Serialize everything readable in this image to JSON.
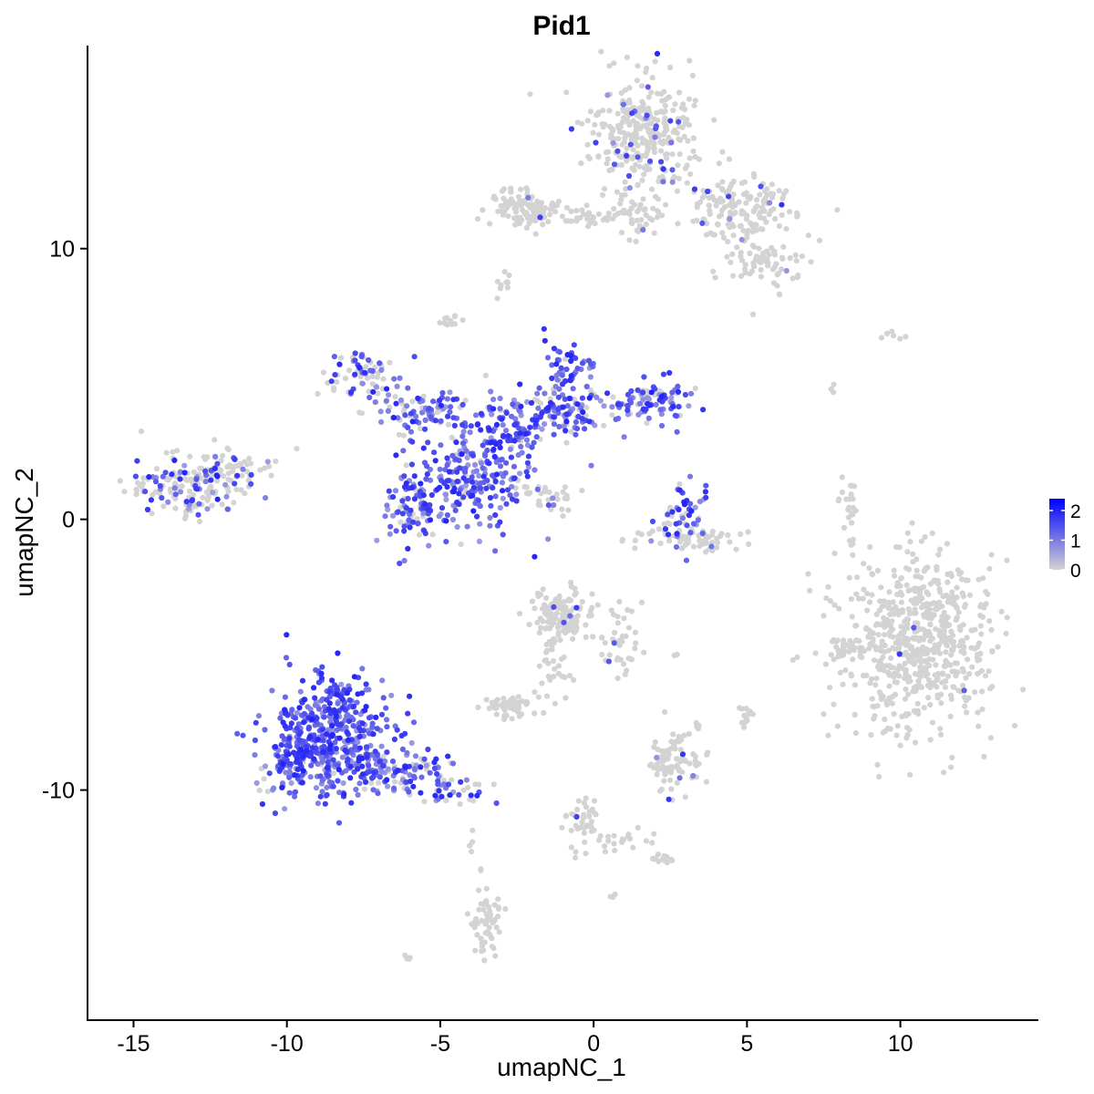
{
  "chart_data": {
    "type": "scatter",
    "title": "Pid1",
    "xlabel": "umapNC_1",
    "ylabel": "umapNC_2",
    "xlim": [
      -16.5,
      14.5
    ],
    "ylim": [
      -18.5,
      17.5
    ],
    "x_ticks": [
      -15,
      -10,
      -5,
      0,
      5,
      10
    ],
    "x_tick_labels": [
      "-15",
      "-10",
      "-5",
      "0",
      "5",
      "10"
    ],
    "y_ticks": [
      -10,
      0,
      10
    ],
    "y_tick_labels": [
      "-10",
      "0",
      "10"
    ],
    "grid": false,
    "legend": {
      "placement": "right",
      "type": "colorbar",
      "ticks": [
        0,
        1,
        2
      ],
      "tick_labels": [
        "0",
        "1",
        "2"
      ],
      "range": [
        0,
        2.4
      ],
      "color_low": "#d3d3d3",
      "color_high": "#0000ff"
    },
    "clusters": [
      {
        "cx": 1.7,
        "cy": 14.3,
        "sx": 0.9,
        "sy": 1.0,
        "n": 320,
        "expr": 0.08
      },
      {
        "cx": 4.8,
        "cy": 11.5,
        "sx": 0.9,
        "sy": 0.6,
        "n": 160,
        "expr": 0.06
      },
      {
        "cx": 5.5,
        "cy": 9.5,
        "sx": 0.6,
        "sy": 0.5,
        "n": 70,
        "expr": 0.03
      },
      {
        "cx": -2.3,
        "cy": 11.5,
        "sx": 0.6,
        "sy": 0.35,
        "n": 110,
        "expr": 0.02
      },
      {
        "cx": -0.3,
        "cy": 11.2,
        "sx": 0.8,
        "sy": 0.25,
        "n": 35,
        "expr": 0.02
      },
      {
        "cx": 1.6,
        "cy": 11.2,
        "sx": 0.6,
        "sy": 0.4,
        "n": 40,
        "expr": 0.02
      },
      {
        "cx": -2.9,
        "cy": 8.7,
        "sx": 0.15,
        "sy": 0.3,
        "n": 10,
        "expr": 0.0
      },
      {
        "cx": -4.7,
        "cy": 7.3,
        "sx": 0.2,
        "sy": 0.2,
        "n": 12,
        "expr": 0.0
      },
      {
        "cx": -7.7,
        "cy": 5.3,
        "sx": 0.6,
        "sy": 0.5,
        "n": 70,
        "expr": 0.45
      },
      {
        "cx": -5.5,
        "cy": 4.0,
        "sx": 0.8,
        "sy": 0.4,
        "n": 90,
        "expr": 0.65
      },
      {
        "cx": -4.0,
        "cy": 1.5,
        "sx": 1.0,
        "sy": 1.0,
        "n": 220,
        "expr": 0.9
      },
      {
        "cx": -5.8,
        "cy": 0.5,
        "sx": 0.6,
        "sy": 0.7,
        "n": 90,
        "expr": 0.8
      },
      {
        "cx": -2.8,
        "cy": 3.3,
        "sx": 0.6,
        "sy": 0.6,
        "n": 90,
        "expr": 0.9
      },
      {
        "cx": -1.0,
        "cy": 4.0,
        "sx": 0.8,
        "sy": 0.5,
        "n": 110,
        "expr": 0.8
      },
      {
        "cx": -0.8,
        "cy": 5.6,
        "sx": 0.4,
        "sy": 0.5,
        "n": 50,
        "expr": 0.8
      },
      {
        "cx": 1.9,
        "cy": 4.3,
        "sx": 0.7,
        "sy": 0.4,
        "n": 100,
        "expr": 0.75
      },
      {
        "cx": -1.8,
        "cy": 0.9,
        "sx": 0.7,
        "sy": 0.3,
        "n": 30,
        "expr": 0.05
      },
      {
        "cx": -13.3,
        "cy": 1.3,
        "sx": 1.0,
        "sy": 0.6,
        "n": 170,
        "expr": 0.3
      },
      {
        "cx": -11.8,
        "cy": 1.9,
        "sx": 0.5,
        "sy": 0.4,
        "n": 40,
        "expr": 0.2
      },
      {
        "cx": 2.9,
        "cy": 0.3,
        "sx": 0.4,
        "sy": 0.6,
        "n": 45,
        "expr": 0.75
      },
      {
        "cx": 3.2,
        "cy": -0.7,
        "sx": 0.9,
        "sy": 0.25,
        "n": 70,
        "expr": 0.1
      },
      {
        "cx": 8.3,
        "cy": 0.3,
        "sx": 0.2,
        "sy": 0.6,
        "n": 25,
        "expr": 0.0
      },
      {
        "cx": 7.8,
        "cy": 4.8,
        "sx": 0.05,
        "sy": 0.1,
        "n": 3,
        "expr": 0.0
      },
      {
        "cx": 9.5,
        "cy": 6.8,
        "sx": 0.3,
        "sy": 0.1,
        "n": 6,
        "expr": 0.0
      },
      {
        "cx": 10.6,
        "cy": -4.5,
        "sx": 1.2,
        "sy": 1.5,
        "n": 650,
        "expr": 0.01
      },
      {
        "cx": 8.3,
        "cy": -4.8,
        "sx": 0.4,
        "sy": 0.4,
        "n": 30,
        "expr": 0.0
      },
      {
        "cx": -8.5,
        "cy": -8.0,
        "sx": 1.0,
        "sy": 1.1,
        "n": 460,
        "expr": 1.0
      },
      {
        "cx": -9.8,
        "cy": -9.0,
        "sx": 0.5,
        "sy": 0.6,
        "n": 80,
        "expr": 0.9
      },
      {
        "cx": -6.1,
        "cy": -9.3,
        "sx": 0.8,
        "sy": 0.4,
        "n": 90,
        "expr": 0.7
      },
      {
        "cx": -4.4,
        "cy": -10.1,
        "sx": 0.6,
        "sy": 0.25,
        "n": 35,
        "expr": 0.45
      },
      {
        "cx": -1.0,
        "cy": -3.6,
        "sx": 0.5,
        "sy": 0.5,
        "n": 140,
        "expr": 0.02
      },
      {
        "cx": 0.8,
        "cy": -4.5,
        "sx": 0.4,
        "sy": 0.7,
        "n": 40,
        "expr": 0.01
      },
      {
        "cx": -1.3,
        "cy": -5.5,
        "sx": 0.3,
        "sy": 0.7,
        "n": 25,
        "expr": 0.0
      },
      {
        "cx": -2.6,
        "cy": -6.9,
        "sx": 0.4,
        "sy": 0.2,
        "n": 55,
        "expr": 0.0
      },
      {
        "cx": 2.6,
        "cy": -8.8,
        "sx": 0.5,
        "sy": 0.6,
        "n": 85,
        "expr": 0.05
      },
      {
        "cx": 5.0,
        "cy": -7.2,
        "sx": 0.15,
        "sy": 0.2,
        "n": 15,
        "expr": 0.0
      },
      {
        "cx": 3.4,
        "cy": -7.6,
        "sx": 0.05,
        "sy": 0.1,
        "n": 4,
        "expr": 0.0
      },
      {
        "cx": 2.7,
        "cy": -5.0,
        "sx": 0.1,
        "sy": 0.02,
        "n": 3,
        "expr": 0.0
      },
      {
        "cx": -0.4,
        "cy": -11.2,
        "sx": 0.3,
        "sy": 0.6,
        "n": 40,
        "expr": 0.02
      },
      {
        "cx": 0.8,
        "cy": -11.9,
        "sx": 0.5,
        "sy": 0.2,
        "n": 20,
        "expr": 0.0
      },
      {
        "cx": 2.3,
        "cy": -12.5,
        "sx": 0.2,
        "sy": 0.15,
        "n": 15,
        "expr": 0.0
      },
      {
        "cx": -3.5,
        "cy": -14.6,
        "sx": 0.25,
        "sy": 0.7,
        "n": 60,
        "expr": 0.0
      },
      {
        "cx": -4.0,
        "cy": -11.9,
        "sx": 0.05,
        "sy": 0.2,
        "n": 4,
        "expr": 0.0
      },
      {
        "cx": -6.1,
        "cy": -16.2,
        "sx": 0.1,
        "sy": 0.05,
        "n": 4,
        "expr": 0.0
      },
      {
        "cx": 0.6,
        "cy": -13.9,
        "sx": 0.05,
        "sy": 0.05,
        "n": 3,
        "expr": 0.0
      }
    ]
  }
}
